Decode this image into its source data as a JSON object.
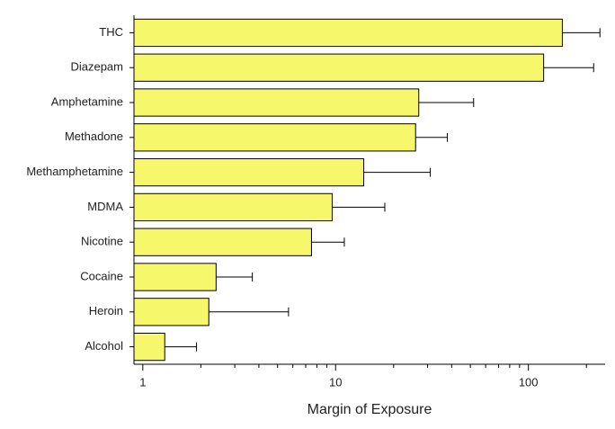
{
  "chart_data": {
    "type": "bar",
    "orientation": "horizontal",
    "x_label": "Margin of Exposure",
    "categories": [
      "THC",
      "Diazepam",
      "Amphetamine",
      "Methadone",
      "Methamphetamine",
      "MDMA",
      "Nicotine",
      "Cocaine",
      "Heroin",
      "Alcohol"
    ],
    "values": [
      150,
      120,
      27,
      26,
      14,
      9.6,
      7.5,
      2.4,
      2.2,
      1.3
    ],
    "errors": [
      85,
      98,
      25,
      12,
      17,
      8.4,
      3.6,
      1.3,
      3.5,
      0.6
    ],
    "color": "#f7f76c",
    "xlog": true,
    "xlim": [
      0.9,
      250
    ],
    "xticks": [
      1,
      10,
      100
    ],
    "xminorticks": [
      2,
      3,
      4,
      5,
      6,
      7,
      8,
      9,
      20,
      30,
      40,
      50,
      60,
      70,
      80,
      90,
      200
    ],
    "grid": false
  }
}
